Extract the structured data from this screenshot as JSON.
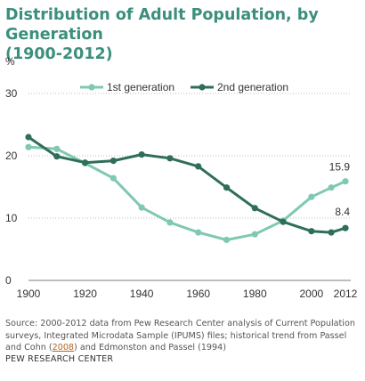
{
  "header": {
    "title_line1": "Distribution of Adult Population, by Generation",
    "title_line2": "(1900-2012)"
  },
  "chart_data": {
    "type": "line",
    "unit_label": "%",
    "x": [
      1900,
      1910,
      1920,
      1930,
      1940,
      1950,
      1960,
      1970,
      1980,
      1990,
      2000,
      2007,
      2012
    ],
    "series": [
      {
        "name": "1st generation",
        "color": "#7fc8b4",
        "values": [
          21.4,
          21.1,
          18.8,
          16.4,
          11.7,
          9.3,
          7.7,
          6.5,
          7.4,
          9.6,
          13.4,
          14.9,
          15.9
        ]
      },
      {
        "name": "2nd generation",
        "color": "#2f6e58",
        "values": [
          23.0,
          19.9,
          18.9,
          19.2,
          20.2,
          19.6,
          18.3,
          14.9,
          11.6,
          9.4,
          7.9,
          7.7,
          8.4
        ]
      }
    ],
    "end_labels": [
      "15.9",
      "8.4"
    ],
    "y_ticks": [
      "0",
      "10",
      "20",
      "30"
    ],
    "x_ticks": [
      "1900",
      "1920",
      "1940",
      "1960",
      "1980",
      "2000",
      "2012"
    ],
    "ylim": [
      0,
      30
    ],
    "xlim": [
      1900,
      2012
    ],
    "grid": true,
    "legend_position": "top"
  },
  "footer": {
    "source_part1": "Source: 2000-2012 data from Pew Research Center analysis of Current Population surveys, Integrated Microdata Sample (IPUMS) files; historical trend from Passel and Cohn (",
    "source_link": "2008",
    "source_part2": ") and Edmonston and Passel (1994)",
    "credit": "PEW RESEARCH CENTER"
  }
}
